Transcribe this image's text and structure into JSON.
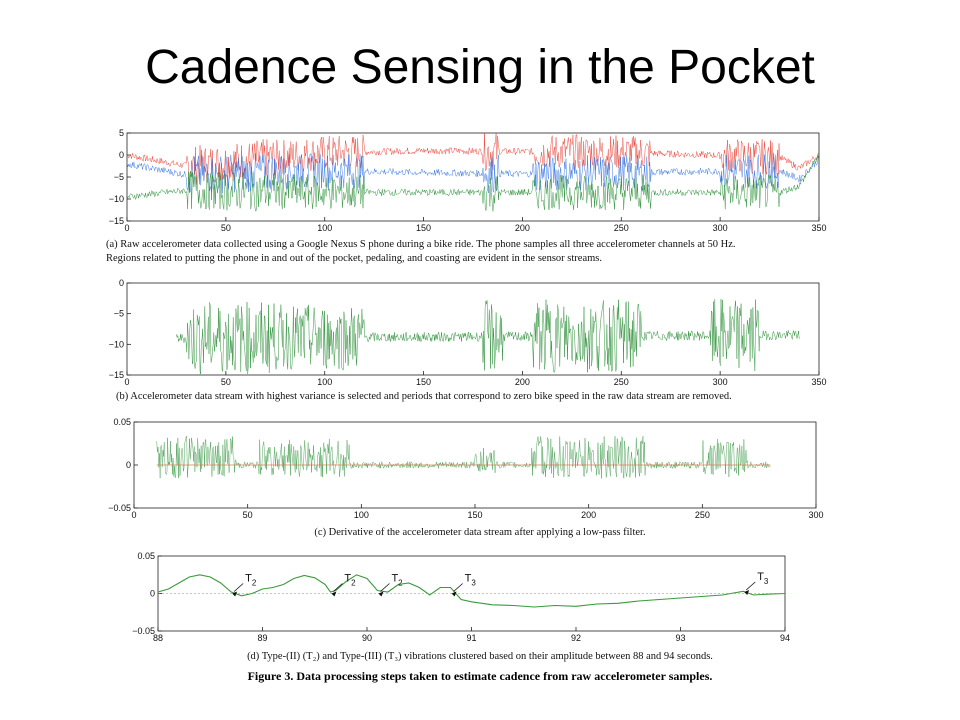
{
  "slide": {
    "title": "Cadence Sensing in the Pocket",
    "figure_caption": "Figure 3. Data processing steps taken to estimate cadence from raw accelerometer samples."
  },
  "chart_data": [
    {
      "id": "a",
      "type": "line",
      "caption_lines": [
        "(a)  Raw accelerometer data collected using a Google Nexus S phone during a bike ride.  The phone samples all three accelerometer channels at 50 Hz.",
        "Regions related to putting the phone in and out of the pocket, pedaling, and coasting are evident in the sensor streams."
      ],
      "xlim": [
        0,
        350
      ],
      "ylim": [
        -15,
        5
      ],
      "xticks": [
        "0",
        "50",
        "100",
        "150",
        "200",
        "250",
        "300",
        "350"
      ],
      "yticks": [
        "5",
        "0",
        "−5",
        "−10",
        "−15"
      ],
      "series": [
        {
          "color": "#e8372c",
          "baseline": [
            [
              0,
              0
            ],
            [
              30,
              -2.5
            ],
            [
              100,
              0.5
            ],
            [
              150,
              1.0
            ],
            [
              200,
              0.8
            ],
            [
              250,
              0.6
            ],
            [
              330,
              -0.5
            ],
            [
              340,
              -3
            ],
            [
              350,
              0
            ]
          ]
        },
        {
          "color": "#2d6fe0",
          "baseline": [
            [
              0,
              -2
            ],
            [
              30,
              -4.5
            ],
            [
              100,
              -3.5
            ],
            [
              150,
              -4
            ],
            [
              200,
              -4.3
            ],
            [
              250,
              -4
            ],
            [
              330,
              -3.5
            ],
            [
              340,
              -5.5
            ],
            [
              350,
              -1
            ]
          ]
        },
        {
          "color": "#1f8a2c",
          "baseline": [
            [
              0,
              -9.5
            ],
            [
              30,
              -8
            ],
            [
              100,
              -8.5
            ],
            [
              150,
              -8.5
            ],
            [
              200,
              -8.5
            ],
            [
              250,
              -8.5
            ],
            [
              330,
              -8.5
            ],
            [
              340,
              -7
            ],
            [
              350,
              0
            ]
          ]
        }
      ]
    },
    {
      "id": "b",
      "type": "line",
      "caption_lines": [
        "(b)  Accelerometer data stream with highest variance is selected and periods that correspond to zero bike speed in the raw data stream are removed."
      ],
      "xlim": [
        0,
        350
      ],
      "ylim": [
        -15,
        0
      ],
      "xticks": [
        "0",
        "50",
        "100",
        "150",
        "200",
        "250",
        "300",
        "350"
      ],
      "yticks": [
        "0",
        "−5",
        "−10",
        "−15"
      ],
      "series": [
        {
          "color": "#1f8a2c",
          "baseline": [
            [
              25,
              -9
            ],
            [
              340,
              -8.5
            ]
          ]
        }
      ]
    },
    {
      "id": "c",
      "type": "line",
      "caption_lines": [
        "(c)  Derivative of the accelerometer data stream after applying a low-pass filter."
      ],
      "xlim": [
        0,
        300
      ],
      "ylim": [
        -0.05,
        0.05
      ],
      "xticks": [
        "0",
        "50",
        "100",
        "150",
        "200",
        "250",
        "300"
      ],
      "yticks": [
        "0.05",
        "0",
        "−0.05"
      ],
      "series": [
        {
          "color": "#1f8a2c",
          "baseline": [
            [
              10,
              0
            ],
            [
              280,
              0
            ]
          ]
        },
        {
          "color": "#e0703a",
          "baseline": [
            [
              10,
              0
            ],
            [
              280,
              0
            ]
          ]
        }
      ]
    },
    {
      "id": "d",
      "type": "line",
      "caption_lines": [
        "(d)  Type-(II) (T₂) and Type-(III) (T₃) vibrations clustered based on their amplitude between 88 and 94 seconds."
      ],
      "xlim": [
        88,
        94
      ],
      "ylim": [
        -0.05,
        0.05
      ],
      "xticks": [
        "88",
        "89",
        "90",
        "91",
        "92",
        "93",
        "94"
      ],
      "yticks": [
        "0.05",
        "0",
        "−0.05"
      ],
      "annotations": [
        {
          "label": "T",
          "sub": "2",
          "x": 88.7,
          "y": 0.0
        },
        {
          "label": "T",
          "sub": "2",
          "x": 89.65,
          "y": 0.0
        },
        {
          "label": "T",
          "sub": "2",
          "x": 90.1,
          "y": 0.0
        },
        {
          "label": "T",
          "sub": "3",
          "x": 90.8,
          "y": 0.0
        },
        {
          "label": "T",
          "sub": "3",
          "x": 93.6,
          "y": 0.002
        }
      ],
      "series": [
        {
          "color": "#3a9a3a",
          "points": [
            [
              88.0,
              0.002
            ],
            [
              88.1,
              0.006
            ],
            [
              88.2,
              0.014
            ],
            [
              88.3,
              0.022
            ],
            [
              88.4,
              0.025
            ],
            [
              88.5,
              0.022
            ],
            [
              88.6,
              0.014
            ],
            [
              88.7,
              0.002
            ],
            [
              88.8,
              -0.003
            ],
            [
              88.9,
              0.0
            ],
            [
              89.0,
              0.006
            ],
            [
              89.1,
              0.008
            ],
            [
              89.2,
              0.012
            ],
            [
              89.3,
              0.02
            ],
            [
              89.4,
              0.024
            ],
            [
              89.5,
              0.021
            ],
            [
              89.6,
              0.012
            ],
            [
              89.65,
              0.002
            ],
            [
              89.7,
              0.004
            ],
            [
              89.8,
              0.016
            ],
            [
              89.9,
              0.025
            ],
            [
              90.0,
              0.02
            ],
            [
              90.1,
              0.004
            ],
            [
              90.2,
              0.002
            ],
            [
              90.3,
              0.012
            ],
            [
              90.4,
              0.014
            ],
            [
              90.5,
              0.008
            ],
            [
              90.6,
              -0.002
            ],
            [
              90.7,
              0.008
            ],
            [
              90.8,
              0.008
            ],
            [
              90.9,
              -0.008
            ],
            [
              91.0,
              -0.011
            ],
            [
              91.1,
              -0.013
            ],
            [
              91.2,
              -0.015
            ],
            [
              91.4,
              -0.016
            ],
            [
              91.6,
              -0.018
            ],
            [
              91.8,
              -0.016
            ],
            [
              92.0,
              -0.017
            ],
            [
              92.2,
              -0.014
            ],
            [
              92.4,
              -0.013
            ],
            [
              92.6,
              -0.01
            ],
            [
              92.8,
              -0.008
            ],
            [
              93.0,
              -0.006
            ],
            [
              93.2,
              -0.004
            ],
            [
              93.4,
              -0.002
            ],
            [
              93.6,
              0.003
            ],
            [
              93.7,
              -0.002
            ],
            [
              93.8,
              -0.001
            ],
            [
              94.0,
              0.0
            ]
          ]
        },
        {
          "color": "#e0703a",
          "points": [
            [
              88,
              0
            ],
            [
              94,
              0
            ]
          ]
        }
      ]
    }
  ]
}
